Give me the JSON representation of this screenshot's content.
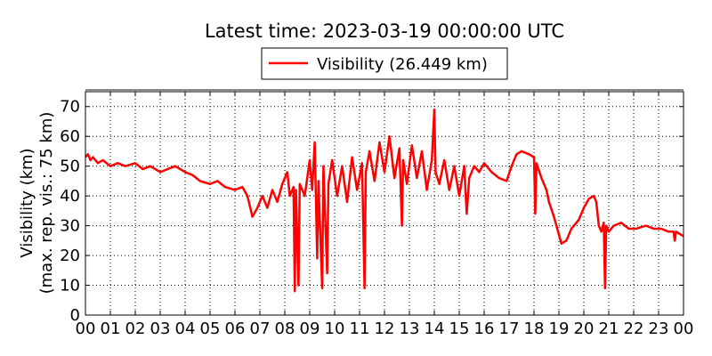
{
  "chart_data": {
    "type": "line",
    "title": "Latest time: 2023-03-19 00:00:00 UTC",
    "y_label": [
      "Visibility (km)",
      "(max. rep. vis.: 75 km)"
    ],
    "legend": "top",
    "grid": true,
    "xlim": [
      0,
      24
    ],
    "ylim": [
      0,
      75
    ],
    "yticks": [
      0,
      10,
      20,
      30,
      40,
      50,
      60,
      70
    ],
    "xticks": [
      {
        "value": 0,
        "label": "00"
      },
      {
        "value": 1,
        "label": "01"
      },
      {
        "value": 2,
        "label": "02"
      },
      {
        "value": 3,
        "label": "03"
      },
      {
        "value": 4,
        "label": "04"
      },
      {
        "value": 5,
        "label": "05"
      },
      {
        "value": 6,
        "label": "06"
      },
      {
        "value": 7,
        "label": "07"
      },
      {
        "value": 8,
        "label": "08"
      },
      {
        "value": 9,
        "label": "09"
      },
      {
        "value": 10,
        "label": "10"
      },
      {
        "value": 11,
        "label": "11"
      },
      {
        "value": 12,
        "label": "12"
      },
      {
        "value": 13,
        "label": "13"
      },
      {
        "value": 14,
        "label": "14"
      },
      {
        "value": 15,
        "label": "15"
      },
      {
        "value": 16,
        "label": "16"
      },
      {
        "value": 17,
        "label": "17"
      },
      {
        "value": 18,
        "label": "18"
      },
      {
        "value": 19,
        "label": "19"
      },
      {
        "value": 20,
        "label": "20"
      },
      {
        "value": 21,
        "label": "21"
      },
      {
        "value": 22,
        "label": "22"
      },
      {
        "value": 23,
        "label": "23"
      },
      {
        "value": 24,
        "label": "00"
      }
    ],
    "x": [
      0,
      0.1,
      0.2,
      0.3,
      0.5,
      0.7,
      1.0,
      1.3,
      1.6,
      2.0,
      2.3,
      2.6,
      3.0,
      3.3,
      3.6,
      4.0,
      4.3,
      4.6,
      5.0,
      5.3,
      5.6,
      6.0,
      6.3,
      6.5,
      6.7,
      6.9,
      7.1,
      7.3,
      7.5,
      7.7,
      7.9,
      8.1,
      8.2,
      8.35,
      8.4,
      8.45,
      8.55,
      8.6,
      8.8,
      9.0,
      9.1,
      9.2,
      9.3,
      9.35,
      9.5,
      9.55,
      9.7,
      9.75,
      9.9,
      10.1,
      10.3,
      10.5,
      10.7,
      10.9,
      11.1,
      11.2,
      11.25,
      11.4,
      11.6,
      11.8,
      12.0,
      12.2,
      12.4,
      12.6,
      12.7,
      12.75,
      12.9,
      13.1,
      13.3,
      13.5,
      13.7,
      13.9,
      14.0,
      14.05,
      14.2,
      14.4,
      14.6,
      14.8,
      15.0,
      15.2,
      15.3,
      15.4,
      15.6,
      15.8,
      16.0,
      16.3,
      16.6,
      16.9,
      17.1,
      17.3,
      17.5,
      17.8,
      18.0,
      18.05,
      18.1,
      18.3,
      18.5,
      18.6,
      18.8,
      19.0,
      19.1,
      19.3,
      19.5,
      19.8,
      20.0,
      20.2,
      20.4,
      20.5,
      20.6,
      20.7,
      20.8,
      20.85,
      20.9,
      21.0,
      21.2,
      21.5,
      21.8,
      22.1,
      22.5,
      22.8,
      23.1,
      23.4,
      23.6,
      23.65,
      23.7,
      24.0
    ],
    "series": [
      {
        "name": "Visibility (26.449 km)",
        "color": "#ff0000",
        "values": [
          53,
          54,
          52,
          53,
          51,
          52,
          50,
          51,
          50,
          51,
          49,
          50,
          48,
          49,
          50,
          48,
          47,
          45,
          44,
          45,
          43,
          42,
          43,
          40,
          33,
          36,
          40,
          36,
          42,
          38,
          44,
          48,
          40,
          43,
          8,
          42,
          10,
          44,
          40,
          52,
          42,
          58,
          19,
          45,
          9,
          50,
          14,
          44,
          52,
          40,
          50,
          38,
          53,
          42,
          51,
          9,
          48,
          55,
          45,
          58,
          48,
          60,
          46,
          56,
          30,
          52,
          44,
          57,
          46,
          55,
          42,
          52,
          69,
          48,
          44,
          52,
          42,
          50,
          40,
          50,
          34,
          46,
          50,
          48,
          51,
          48,
          46,
          45,
          50,
          54,
          55,
          54,
          53,
          34,
          51,
          46,
          42,
          38,
          33,
          27,
          24,
          25,
          29,
          32,
          36,
          39,
          40,
          38,
          30,
          28,
          31,
          9,
          30,
          28,
          30,
          31,
          29,
          29,
          30,
          29,
          29,
          28,
          28,
          25,
          28,
          26.449
        ]
      }
    ]
  }
}
